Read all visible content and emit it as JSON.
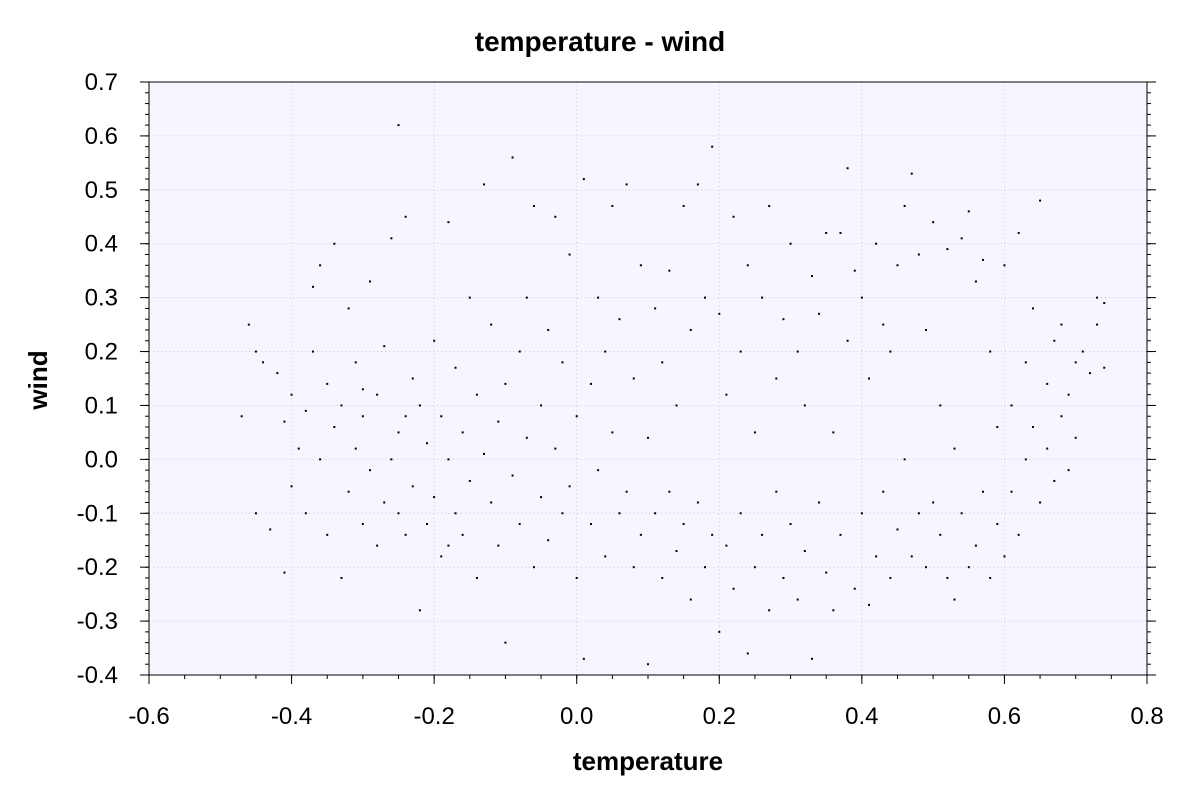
{
  "chart_data": {
    "type": "scatter",
    "title": "temperature - wind",
    "xlabel": "temperature",
    "ylabel": "wind",
    "xlim": [
      -0.6,
      0.8
    ],
    "ylim": [
      -0.4,
      0.7
    ],
    "xticks": [
      "-0.6",
      "-0.4",
      "-0.2",
      "0.0",
      "0.2",
      "0.4",
      "0.6",
      "0.8"
    ],
    "yticks": [
      "0.7",
      "0.6",
      "0.5",
      "0.4",
      "0.3",
      "0.2",
      "0.1",
      "0.0",
      "-0.1",
      "-0.2",
      "-0.3",
      "-0.4"
    ],
    "grid": true,
    "plot_background": "#f5f6ff",
    "grid_color": "#c8c8c8",
    "point_color": "#000000",
    "points": [
      [
        -0.47,
        0.08
      ],
      [
        -0.46,
        0.25
      ],
      [
        -0.45,
        0.2
      ],
      [
        -0.45,
        -0.1
      ],
      [
        -0.44,
        0.18
      ],
      [
        -0.43,
        -0.13
      ],
      [
        -0.42,
        0.16
      ],
      [
        -0.41,
        0.07
      ],
      [
        -0.41,
        -0.21
      ],
      [
        -0.4,
        0.12
      ],
      [
        -0.4,
        -0.05
      ],
      [
        -0.39,
        0.02
      ],
      [
        -0.38,
        0.09
      ],
      [
        -0.38,
        -0.1
      ],
      [
        -0.37,
        0.32
      ],
      [
        -0.37,
        0.2
      ],
      [
        -0.36,
        0.36
      ],
      [
        -0.36,
        0.0
      ],
      [
        -0.35,
        0.14
      ],
      [
        -0.35,
        -0.14
      ],
      [
        -0.34,
        0.4
      ],
      [
        -0.34,
        0.06
      ],
      [
        -0.33,
        -0.22
      ],
      [
        -0.33,
        0.1
      ],
      [
        -0.32,
        0.28
      ],
      [
        -0.32,
        -0.06
      ],
      [
        -0.31,
        0.18
      ],
      [
        -0.31,
        0.02
      ],
      [
        -0.3,
        -0.12
      ],
      [
        -0.3,
        0.08
      ],
      [
        -0.29,
        0.33
      ],
      [
        -0.29,
        -0.02
      ],
      [
        -0.28,
        0.12
      ],
      [
        -0.28,
        -0.16
      ],
      [
        -0.27,
        -0.08
      ],
      [
        -0.27,
        0.21
      ],
      [
        -0.26,
        0.41
      ],
      [
        -0.26,
        0.0
      ],
      [
        -0.25,
        0.62
      ],
      [
        -0.25,
        -0.1
      ],
      [
        -0.25,
        0.05
      ],
      [
        -0.24,
        0.45
      ],
      [
        -0.24,
        -0.14
      ],
      [
        -0.23,
        0.15
      ],
      [
        -0.23,
        -0.05
      ],
      [
        -0.22,
        0.1
      ],
      [
        -0.22,
        -0.28
      ],
      [
        -0.21,
        0.03
      ],
      [
        -0.21,
        -0.12
      ],
      [
        -0.2,
        0.22
      ],
      [
        -0.2,
        -0.07
      ],
      [
        -0.19,
        0.08
      ],
      [
        -0.19,
        -0.18
      ],
      [
        -0.18,
        0.44
      ],
      [
        -0.18,
        0.0
      ],
      [
        -0.17,
        -0.1
      ],
      [
        -0.17,
        0.17
      ],
      [
        -0.16,
        0.05
      ],
      [
        -0.16,
        -0.14
      ],
      [
        -0.15,
        0.3
      ],
      [
        -0.15,
        -0.04
      ],
      [
        -0.14,
        0.12
      ],
      [
        -0.14,
        -0.22
      ],
      [
        -0.13,
        0.51
      ],
      [
        -0.13,
        0.01
      ],
      [
        -0.12,
        -0.08
      ],
      [
        -0.12,
        0.25
      ],
      [
        -0.11,
        0.07
      ],
      [
        -0.11,
        -0.16
      ],
      [
        -0.1,
        -0.34
      ],
      [
        -0.1,
        0.14
      ],
      [
        -0.09,
        0.56
      ],
      [
        -0.09,
        -0.03
      ],
      [
        -0.08,
        0.2
      ],
      [
        -0.08,
        -0.12
      ],
      [
        -0.07,
        0.3
      ],
      [
        -0.07,
        0.04
      ],
      [
        -0.06,
        -0.2
      ],
      [
        -0.06,
        0.47
      ],
      [
        -0.05,
        0.1
      ],
      [
        -0.05,
        -0.07
      ],
      [
        -0.04,
        0.24
      ],
      [
        -0.04,
        -0.15
      ],
      [
        -0.03,
        0.45
      ],
      [
        -0.03,
        0.02
      ],
      [
        -0.02,
        -0.1
      ],
      [
        -0.02,
        0.18
      ],
      [
        -0.01,
        0.38
      ],
      [
        -0.01,
        -0.05
      ],
      [
        0.0,
        0.08
      ],
      [
        0.0,
        -0.22
      ],
      [
        0.01,
        0.52
      ],
      [
        0.01,
        -0.37
      ],
      [
        0.02,
        0.14
      ],
      [
        0.02,
        -0.12
      ],
      [
        0.03,
        0.3
      ],
      [
        0.03,
        -0.02
      ],
      [
        0.04,
        0.2
      ],
      [
        0.04,
        -0.18
      ],
      [
        0.05,
        0.47
      ],
      [
        0.05,
        0.05
      ],
      [
        0.06,
        -0.1
      ],
      [
        0.06,
        0.26
      ],
      [
        0.07,
        0.51
      ],
      [
        0.07,
        -0.06
      ],
      [
        0.08,
        0.15
      ],
      [
        0.08,
        -0.2
      ],
      [
        0.09,
        0.36
      ],
      [
        0.09,
        -0.14
      ],
      [
        0.1,
        -0.38
      ],
      [
        0.1,
        0.04
      ],
      [
        0.11,
        0.28
      ],
      [
        0.11,
        -0.1
      ],
      [
        0.12,
        0.18
      ],
      [
        0.12,
        -0.22
      ],
      [
        0.13,
        0.35
      ],
      [
        0.13,
        -0.06
      ],
      [
        0.14,
        0.1
      ],
      [
        0.14,
        -0.17
      ],
      [
        0.15,
        0.47
      ],
      [
        0.15,
        -0.12
      ],
      [
        0.16,
        0.24
      ],
      [
        0.16,
        -0.26
      ],
      [
        0.17,
        0.51
      ],
      [
        0.17,
        -0.08
      ],
      [
        0.18,
        0.3
      ],
      [
        0.18,
        -0.2
      ],
      [
        0.19,
        0.58
      ],
      [
        0.19,
        -0.14
      ],
      [
        0.2,
        0.27
      ],
      [
        0.2,
        -0.32
      ],
      [
        0.21,
        0.12
      ],
      [
        0.21,
        -0.16
      ],
      [
        0.22,
        0.45
      ],
      [
        0.22,
        -0.24
      ],
      [
        0.23,
        0.2
      ],
      [
        0.23,
        -0.1
      ],
      [
        0.24,
        0.36
      ],
      [
        0.24,
        -0.36
      ],
      [
        0.25,
        0.05
      ],
      [
        0.25,
        -0.2
      ],
      [
        0.26,
        0.3
      ],
      [
        0.26,
        -0.14
      ],
      [
        0.27,
        0.47
      ],
      [
        0.27,
        -0.28
      ],
      [
        0.28,
        0.15
      ],
      [
        0.28,
        -0.06
      ],
      [
        0.29,
        0.26
      ],
      [
        0.29,
        -0.22
      ],
      [
        0.3,
        0.4
      ],
      [
        0.3,
        -0.12
      ],
      [
        0.31,
        0.2
      ],
      [
        0.31,
        -0.26
      ],
      [
        0.32,
        0.1
      ],
      [
        0.32,
        -0.17
      ],
      [
        0.33,
        0.34
      ],
      [
        0.33,
        -0.37
      ],
      [
        0.34,
        0.27
      ],
      [
        0.34,
        -0.08
      ],
      [
        0.35,
        0.42
      ],
      [
        0.35,
        -0.21
      ],
      [
        0.36,
        0.05
      ],
      [
        0.36,
        -0.28
      ],
      [
        0.37,
        0.42
      ],
      [
        0.37,
        -0.14
      ],
      [
        0.38,
        0.54
      ],
      [
        0.38,
        0.22
      ],
      [
        0.39,
        -0.24
      ],
      [
        0.39,
        0.35
      ],
      [
        0.4,
        -0.1
      ],
      [
        0.4,
        0.3
      ],
      [
        0.41,
        -0.27
      ],
      [
        0.41,
        0.15
      ],
      [
        0.42,
        0.4
      ],
      [
        0.42,
        -0.18
      ],
      [
        0.43,
        0.25
      ],
      [
        0.43,
        -0.06
      ],
      [
        0.44,
        0.2
      ],
      [
        0.44,
        -0.22
      ],
      [
        0.45,
        0.36
      ],
      [
        0.45,
        -0.13
      ],
      [
        0.46,
        0.47
      ],
      [
        0.46,
        0.0
      ],
      [
        0.47,
        0.53
      ],
      [
        0.47,
        -0.18
      ],
      [
        0.48,
        0.38
      ],
      [
        0.48,
        -0.1
      ],
      [
        0.49,
        0.24
      ],
      [
        0.49,
        -0.2
      ],
      [
        0.5,
        0.44
      ],
      [
        0.5,
        -0.08
      ],
      [
        0.51,
        0.1
      ],
      [
        0.51,
        -0.14
      ],
      [
        0.52,
        0.39
      ],
      [
        0.52,
        -0.22
      ],
      [
        0.53,
        0.02
      ],
      [
        0.53,
        -0.26
      ],
      [
        0.54,
        0.41
      ],
      [
        0.54,
        -0.1
      ],
      [
        0.55,
        0.46
      ],
      [
        0.55,
        -0.2
      ],
      [
        0.56,
        0.33
      ],
      [
        0.56,
        -0.16
      ],
      [
        0.57,
        0.37
      ],
      [
        0.57,
        -0.06
      ],
      [
        0.58,
        0.2
      ],
      [
        0.58,
        -0.22
      ],
      [
        0.59,
        0.06
      ],
      [
        0.59,
        -0.12
      ],
      [
        0.6,
        0.36
      ],
      [
        0.6,
        -0.18
      ],
      [
        0.61,
        0.1
      ],
      [
        0.61,
        -0.06
      ],
      [
        0.62,
        0.42
      ],
      [
        0.62,
        -0.14
      ],
      [
        0.63,
        0.0
      ],
      [
        0.63,
        0.18
      ],
      [
        0.64,
        0.28
      ],
      [
        0.64,
        0.06
      ],
      [
        0.65,
        0.48
      ],
      [
        0.65,
        -0.08
      ],
      [
        0.66,
        0.14
      ],
      [
        0.66,
        0.02
      ],
      [
        0.67,
        0.22
      ],
      [
        0.67,
        -0.04
      ],
      [
        0.68,
        0.25
      ],
      [
        0.68,
        0.08
      ],
      [
        0.69,
        0.12
      ],
      [
        0.69,
        -0.02
      ],
      [
        0.7,
        0.18
      ],
      [
        0.7,
        0.04
      ],
      [
        0.71,
        0.2
      ],
      [
        0.72,
        0.16
      ],
      [
        0.73,
        0.3
      ],
      [
        0.73,
        0.25
      ],
      [
        0.74,
        0.17
      ],
      [
        0.74,
        0.29
      ],
      [
        -0.3,
        0.13
      ],
      [
        -0.24,
        0.08
      ],
      [
        -0.18,
        -0.16
      ]
    ]
  }
}
